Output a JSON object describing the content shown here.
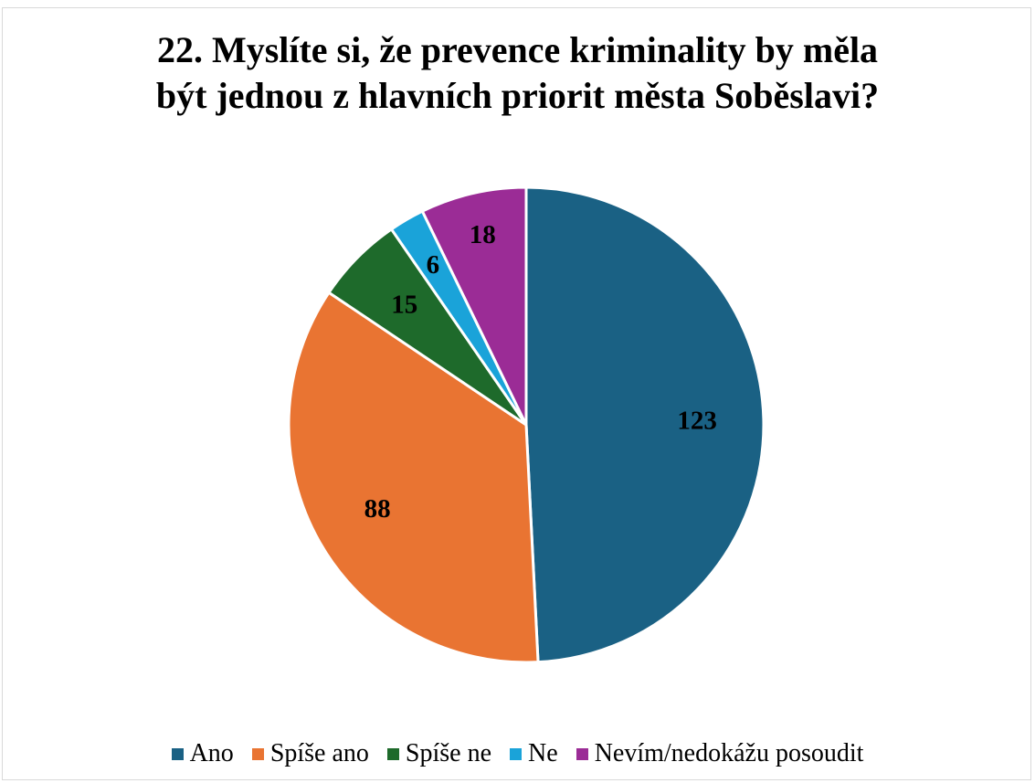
{
  "chart_data": {
    "type": "pie",
    "title_lines": [
      "22. Myslíte si, že prevence kriminality by měla",
      "být jednou z hlavních priorit města Soběslavi?"
    ],
    "categories": [
      "Ano",
      "Spíše ano",
      "Spíše ne",
      "Ne",
      "Nevím/nedokážu posoudit"
    ],
    "values": [
      123,
      88,
      15,
      6,
      18
    ],
    "colors": [
      "#1a6184",
      "#e97432",
      "#1e6a2b",
      "#1aa3d9",
      "#9b2c96"
    ],
    "data_labels": [
      "123",
      "88",
      "15",
      "6",
      "18"
    ],
    "legend_position": "bottom",
    "start_angle": "12 o'clock",
    "direction": "clockwise"
  }
}
